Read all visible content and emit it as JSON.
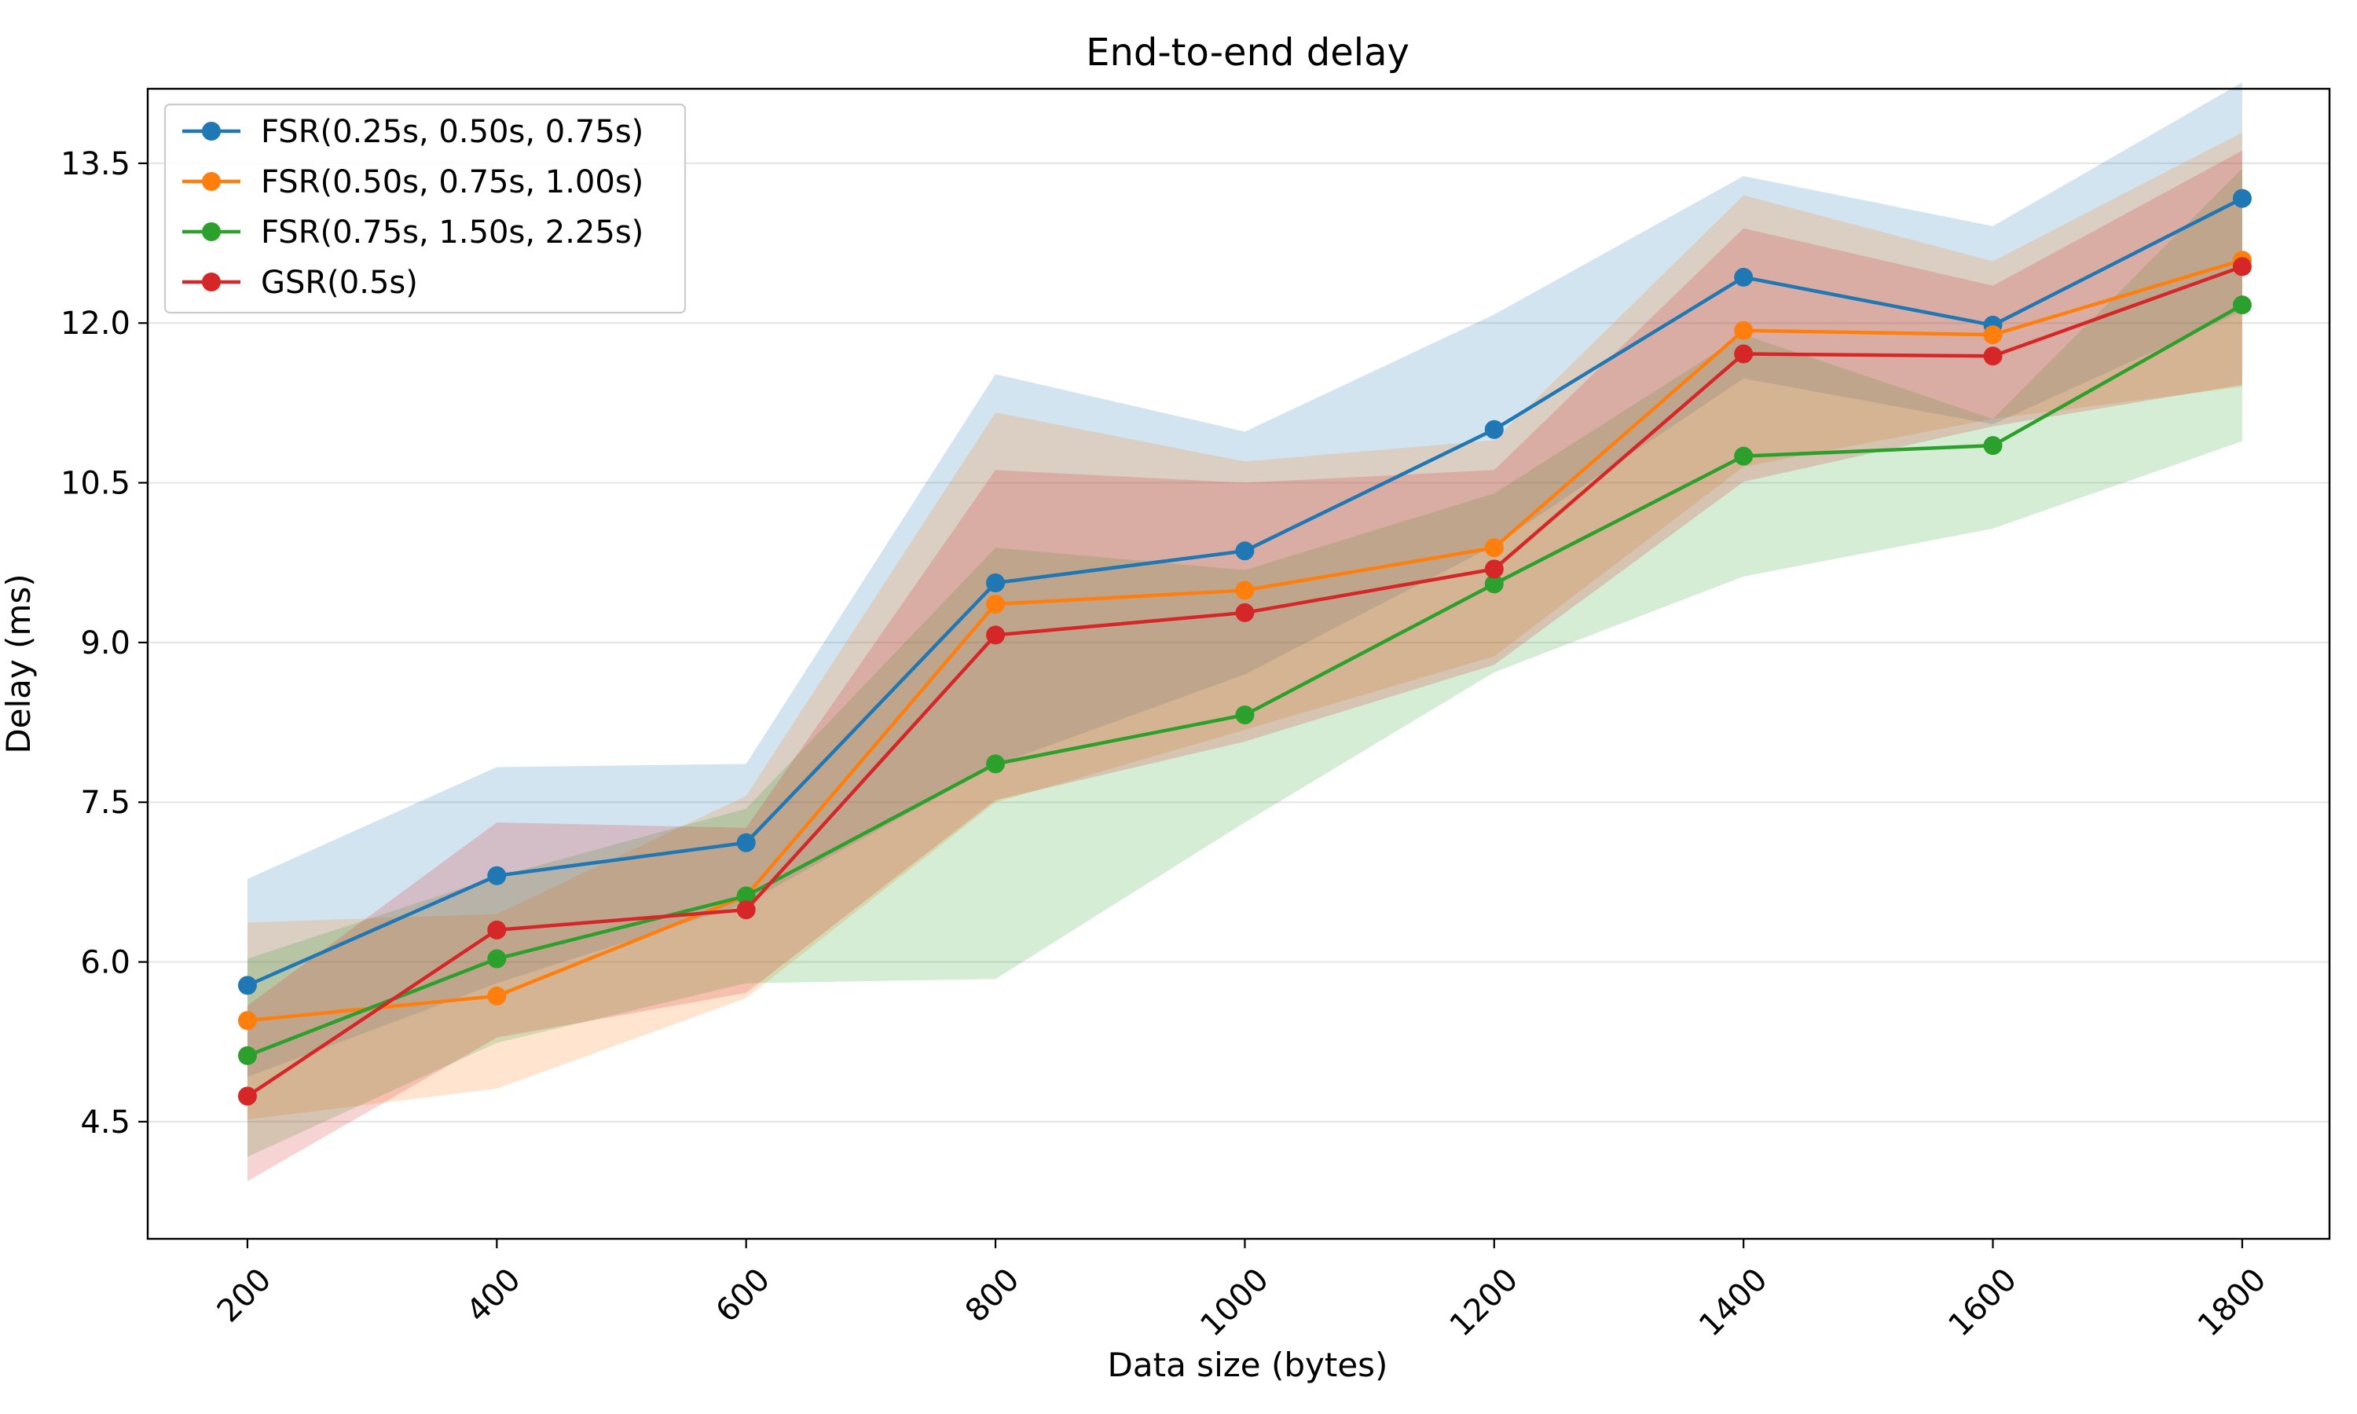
{
  "chart_data": {
    "type": "line",
    "title": "End-to-end delay",
    "xlabel": "Data size (bytes)",
    "ylabel": "Delay (ms)",
    "x": [
      200,
      400,
      600,
      800,
      1000,
      1200,
      1400,
      1600,
      1800
    ],
    "x_tick_labels": [
      "200",
      "400",
      "600",
      "800",
      "1000",
      "1200",
      "1400",
      "1600",
      "1800"
    ],
    "y_ticks": [
      4.5,
      6.0,
      7.5,
      9.0,
      10.5,
      12.0,
      13.5
    ],
    "y_tick_labels": [
      "4.5",
      "6.0",
      "7.5",
      "9.0",
      "10.5",
      "12.0",
      "13.5"
    ],
    "xlim": [
      120,
      1870
    ],
    "ylim": [
      3.4,
      14.2
    ],
    "grid": "horizontal",
    "legend_position": "top-left",
    "series": [
      {
        "name": "FSR(0.25s, 0.50s, 0.75s)",
        "color": "#1f77b4",
        "values": [
          5.78,
          6.81,
          7.12,
          9.56,
          9.86,
          11.0,
          12.43,
          11.98,
          13.17
        ],
        "band_upper": [
          6.78,
          7.83,
          7.86,
          11.52,
          10.98,
          12.08,
          13.38,
          12.91,
          14.26
        ],
        "band_lower": [
          4.92,
          5.8,
          6.55,
          7.85,
          8.7,
          9.91,
          11.48,
          11.05,
          12.11
        ]
      },
      {
        "name": "FSR(0.50s, 0.75s, 1.00s)",
        "color": "#ff7f0e",
        "values": [
          5.45,
          5.68,
          6.62,
          9.36,
          9.49,
          9.89,
          11.93,
          11.89,
          12.59
        ],
        "band_upper": [
          6.37,
          6.45,
          7.56,
          11.16,
          10.7,
          10.9,
          13.2,
          12.58,
          13.79
        ],
        "band_lower": [
          4.52,
          4.81,
          5.66,
          7.5,
          8.18,
          8.87,
          10.65,
          11.1,
          11.4
        ]
      },
      {
        "name": "FSR(0.75s, 1.50s, 2.25s)",
        "color": "#2ca02c",
        "values": [
          5.12,
          6.03,
          6.62,
          7.86,
          8.32,
          9.55,
          10.75,
          10.85,
          12.17
        ],
        "band_upper": [
          6.03,
          6.8,
          7.44,
          9.89,
          9.68,
          10.4,
          11.89,
          11.1,
          13.45
        ],
        "band_lower": [
          4.17,
          5.24,
          5.8,
          5.84,
          7.31,
          8.72,
          9.62,
          10.07,
          10.89
        ]
      },
      {
        "name": "GSR(0.5s)",
        "color": "#d62728",
        "values": [
          4.74,
          6.3,
          6.49,
          9.07,
          9.28,
          9.69,
          11.71,
          11.69,
          12.53
        ],
        "band_upper": [
          5.59,
          7.31,
          7.26,
          10.62,
          10.5,
          10.62,
          12.89,
          12.35,
          13.62
        ],
        "band_lower": [
          3.94,
          5.29,
          5.71,
          7.52,
          8.07,
          8.79,
          10.51,
          11.03,
          11.42
        ]
      }
    ]
  }
}
